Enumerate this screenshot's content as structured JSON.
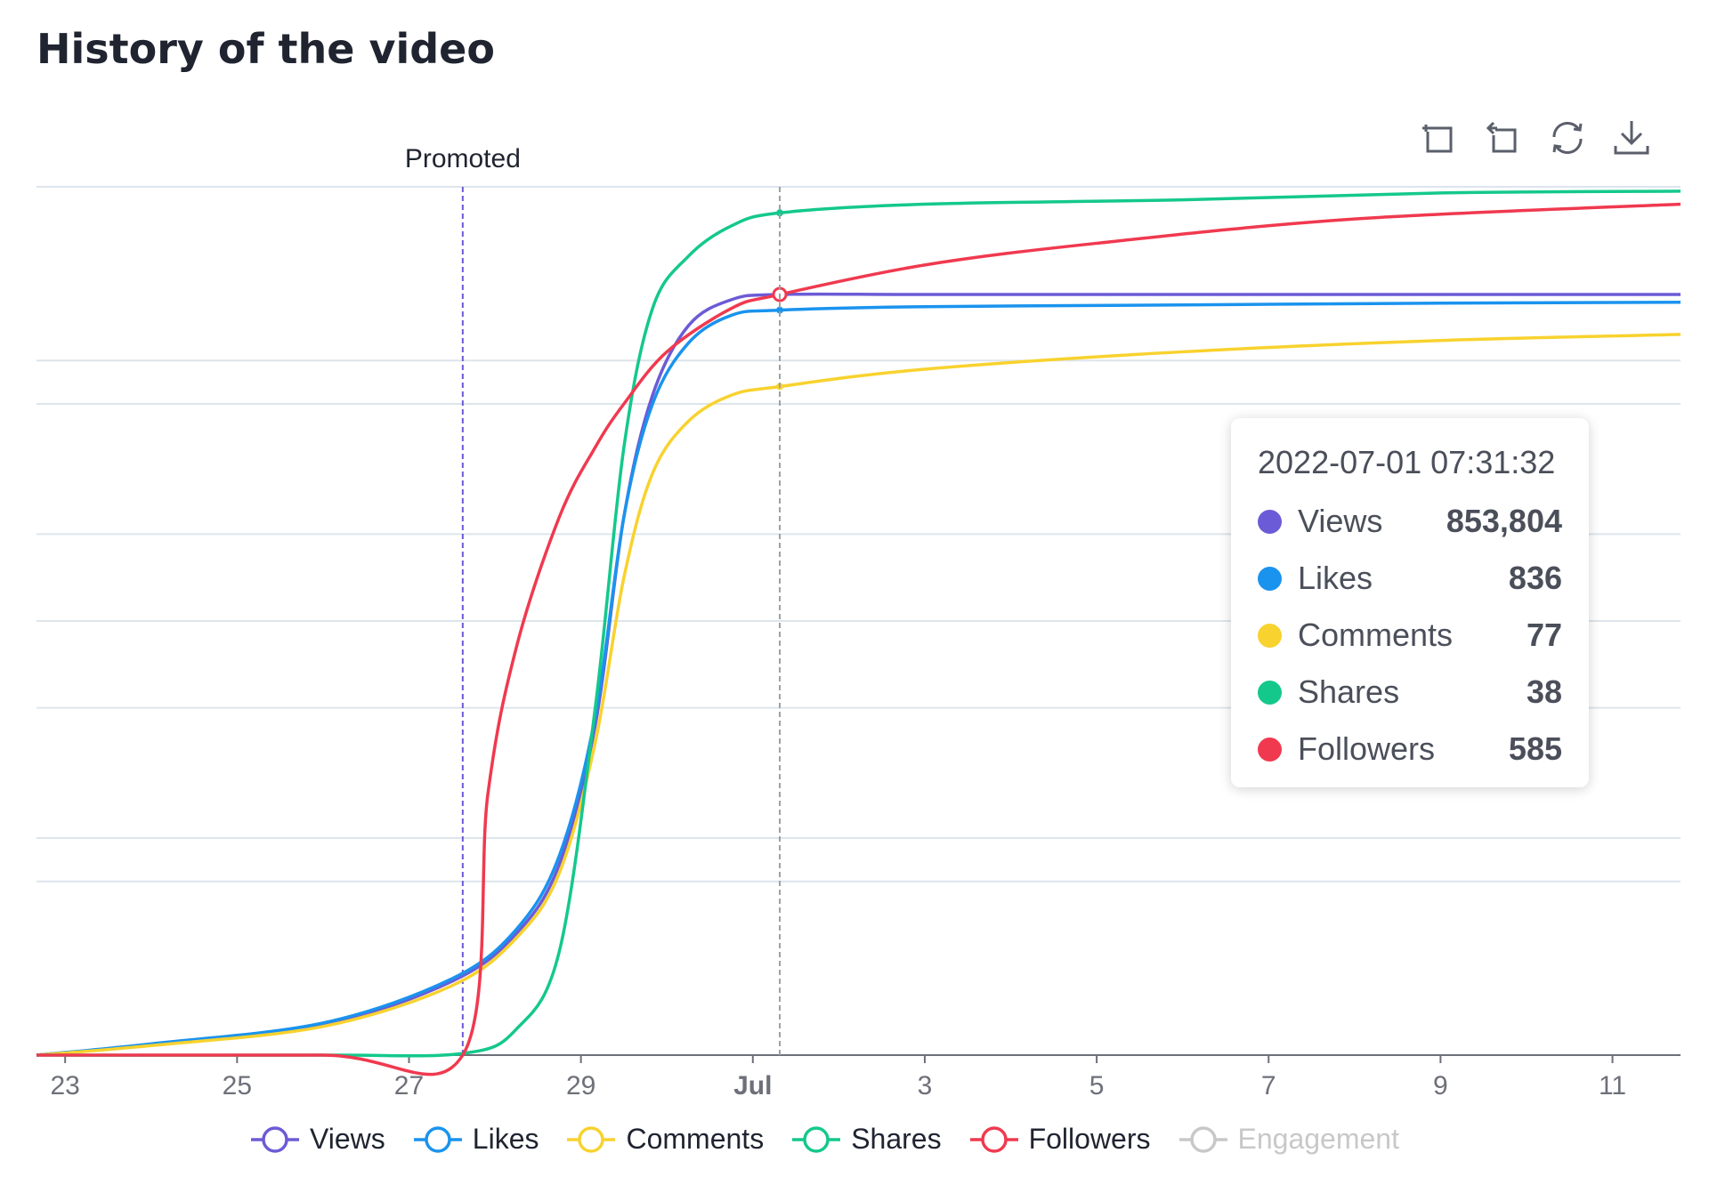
{
  "page": {
    "title": "History of the video"
  },
  "toolbar": {
    "icons": [
      "zoom-select-icon",
      "zoom-reset-icon",
      "refresh-icon",
      "download-icon"
    ]
  },
  "chart_data": {
    "type": "line",
    "xlabel": "",
    "ylabel": "",
    "x_tick_labels": [
      "23",
      "25",
      "27",
      "29",
      "Jul",
      "3",
      "5",
      "7",
      "9",
      "11"
    ],
    "x_ticks": [
      "2022-06-23",
      "2022-06-25",
      "2022-06-27",
      "2022-06-29",
      "2022-07-01",
      "2022-07-03",
      "2022-07-05",
      "2022-07-07",
      "2022-07-09",
      "2022-07-11"
    ],
    "x_range": [
      "2022-06-22 16:00",
      "2022-07-11 19:00"
    ],
    "ylim": [
      0,
      1
    ],
    "y_axis_labels_visible": false,
    "grid": true,
    "annotation": {
      "label": "Promoted",
      "x": "2022-06-27 15:00",
      "color": "#6b5bd6"
    },
    "crosshair_x": "2022-07-01 07:31:32",
    "series": [
      {
        "name": "Views",
        "color": "#6b5bd6",
        "x": [
          "2022-06-22 16:00",
          "2022-06-24 00:00",
          "2022-06-26 00:00",
          "2022-06-27 12:00",
          "2022-06-28 06:00",
          "2022-06-28 18:00",
          "2022-06-29 04:00",
          "2022-06-29 12:00",
          "2022-06-29 20:00",
          "2022-06-30 06:00",
          "2022-06-30 18:00",
          "2022-07-01 07:31",
          "2022-07-03 00:00",
          "2022-07-06 00:00",
          "2022-07-09 00:00",
          "2022-07-11 19:00"
        ],
        "y": [
          0,
          0.012,
          0.035,
          0.085,
          0.14,
          0.22,
          0.38,
          0.62,
          0.76,
          0.84,
          0.87,
          0.876,
          0.876,
          0.876,
          0.876,
          0.876
        ]
      },
      {
        "name": "Likes",
        "color": "#1a93ee",
        "x": [
          "2022-06-22 16:00",
          "2022-06-24 00:00",
          "2022-06-26 00:00",
          "2022-06-27 12:00",
          "2022-06-28 06:00",
          "2022-06-28 18:00",
          "2022-06-29 04:00",
          "2022-06-29 12:00",
          "2022-06-29 20:00",
          "2022-06-30 06:00",
          "2022-06-30 18:00",
          "2022-07-01 07:31",
          "2022-07-03 00:00",
          "2022-07-06 00:00",
          "2022-07-09 00:00",
          "2022-07-11 19:00"
        ],
        "y": [
          0,
          0.013,
          0.037,
          0.088,
          0.145,
          0.23,
          0.39,
          0.62,
          0.75,
          0.82,
          0.852,
          0.858,
          0.862,
          0.864,
          0.866,
          0.867
        ]
      },
      {
        "name": "Comments",
        "color": "#f8d22e",
        "x": [
          "2022-06-22 16:00",
          "2022-06-24 00:00",
          "2022-06-26 00:00",
          "2022-06-27 12:00",
          "2022-06-28 06:00",
          "2022-06-28 18:00",
          "2022-06-29 04:00",
          "2022-06-29 12:00",
          "2022-06-29 20:00",
          "2022-06-30 06:00",
          "2022-06-30 18:00",
          "2022-07-01 07:31",
          "2022-07-03 00:00",
          "2022-07-06 00:00",
          "2022-07-09 00:00",
          "2022-07-11 19:00"
        ],
        "y": [
          0,
          0.011,
          0.033,
          0.08,
          0.135,
          0.21,
          0.36,
          0.55,
          0.67,
          0.73,
          0.76,
          0.77,
          0.79,
          0.81,
          0.823,
          0.83
        ]
      },
      {
        "name": "Shares",
        "color": "#14c88c",
        "x": [
          "2022-06-22 16:00",
          "2022-06-26 00:00",
          "2022-06-27 15:00",
          "2022-06-28 06:00",
          "2022-06-28 18:00",
          "2022-06-29 04:00",
          "2022-06-29 12:00",
          "2022-06-29 20:00",
          "2022-06-30 06:00",
          "2022-06-30 18:00",
          "2022-07-01 07:31",
          "2022-07-03 00:00",
          "2022-07-06 00:00",
          "2022-07-09 00:00",
          "2022-07-11 19:00"
        ],
        "y": [
          0,
          0,
          0.002,
          0.03,
          0.12,
          0.4,
          0.7,
          0.86,
          0.92,
          0.955,
          0.97,
          0.98,
          0.985,
          0.993,
          0.995
        ]
      },
      {
        "name": "Followers",
        "color": "#f0394f",
        "x": [
          "2022-06-22 16:00",
          "2022-06-26 00:00",
          "2022-06-27 15:00",
          "2022-06-27 22:00",
          "2022-06-28 06:00",
          "2022-06-28 18:00",
          "2022-06-29 04:00",
          "2022-06-29 12:00",
          "2022-06-30 00:00",
          "2022-06-30 18:00",
          "2022-07-01 07:31",
          "2022-07-03 00:00",
          "2022-07-05 00:00",
          "2022-07-08 00:00",
          "2022-07-11 19:00"
        ],
        "y": [
          0,
          0,
          0,
          0.3,
          0.47,
          0.62,
          0.7,
          0.75,
          0.81,
          0.86,
          0.876,
          0.91,
          0.935,
          0.963,
          0.98
        ]
      }
    ],
    "legend": [
      {
        "name": "Views",
        "color": "#6b5bd6",
        "active": true
      },
      {
        "name": "Likes",
        "color": "#1a93ee",
        "active": true
      },
      {
        "name": "Comments",
        "color": "#f8d22e",
        "active": true
      },
      {
        "name": "Shares",
        "color": "#14c88c",
        "active": true
      },
      {
        "name": "Followers",
        "color": "#f0394f",
        "active": true
      },
      {
        "name": "Engagement",
        "color": "#c8c8c8",
        "active": false
      }
    ],
    "legend_position": "bottom",
    "tooltip": {
      "time": "2022-07-01 07:31:32",
      "rows": [
        {
          "name": "Views",
          "value": "853,804",
          "color": "#6b5bd6"
        },
        {
          "name": "Likes",
          "value": "836",
          "color": "#1a93ee"
        },
        {
          "name": "Comments",
          "value": "77",
          "color": "#f8d22e"
        },
        {
          "name": "Shares",
          "value": "38",
          "color": "#14c88c"
        },
        {
          "name": "Followers",
          "value": "585",
          "color": "#f0394f"
        }
      ]
    }
  }
}
